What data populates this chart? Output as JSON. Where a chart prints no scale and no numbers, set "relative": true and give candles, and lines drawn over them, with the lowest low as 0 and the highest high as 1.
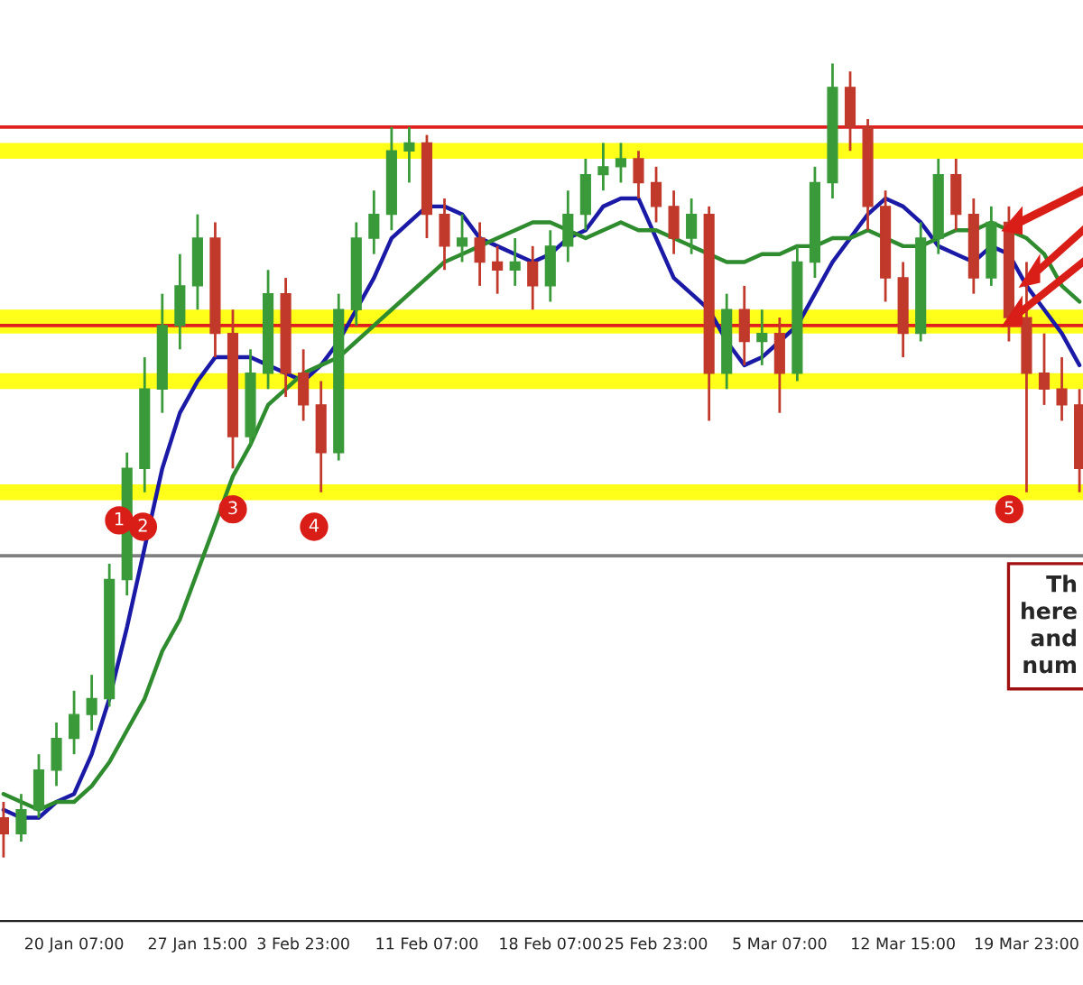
{
  "chart_data": {
    "type": "candlestick",
    "relative": true,
    "tick_labels": "x",
    "grid": false,
    "categories": [
      null,
      null,
      null,
      null,
      "20 Jan 07:00",
      null,
      null,
      null,
      null,
      null,
      null,
      "27 Jan 15:00",
      null,
      null,
      null,
      null,
      null,
      "3 Feb 23:00",
      null,
      null,
      null,
      null,
      null,
      null,
      "11 Feb 07:00",
      null,
      null,
      null,
      null,
      null,
      null,
      "18 Feb 07:00",
      null,
      null,
      null,
      null,
      null,
      "25 Feb 23:00",
      null,
      null,
      null,
      null,
      null,
      null,
      "5 Mar 07:00",
      null,
      null,
      null,
      null,
      null,
      null,
      "12 Mar 15:00",
      null,
      null,
      null,
      null,
      null,
      null,
      "19 Mar 23:00",
      null,
      null,
      null
    ],
    "ohlc": [
      [
        0.05,
        0.07,
        0.0,
        0.03
      ],
      [
        0.03,
        0.08,
        0.02,
        0.06
      ],
      [
        0.06,
        0.13,
        0.05,
        0.11
      ],
      [
        0.11,
        0.17,
        0.09,
        0.15
      ],
      [
        0.15,
        0.21,
        0.13,
        0.18
      ],
      [
        0.18,
        0.23,
        0.16,
        0.2
      ],
      [
        0.2,
        0.37,
        0.19,
        0.35
      ],
      [
        0.35,
        0.51,
        0.33,
        0.49
      ],
      [
        0.49,
        0.63,
        0.46,
        0.59
      ],
      [
        0.59,
        0.71,
        0.56,
        0.67
      ],
      [
        0.67,
        0.76,
        0.64,
        0.72
      ],
      [
        0.72,
        0.81,
        0.69,
        0.78
      ],
      [
        0.78,
        0.8,
        0.63,
        0.66
      ],
      [
        0.66,
        0.69,
        0.49,
        0.53
      ],
      [
        0.53,
        0.64,
        0.52,
        0.61
      ],
      [
        0.61,
        0.74,
        0.59,
        0.71
      ],
      [
        0.71,
        0.73,
        0.58,
        0.61
      ],
      [
        0.61,
        0.64,
        0.55,
        0.57
      ],
      [
        0.57,
        0.6,
        0.46,
        0.51
      ],
      [
        0.51,
        0.71,
        0.5,
        0.69
      ],
      [
        0.69,
        0.8,
        0.67,
        0.78
      ],
      [
        0.78,
        0.84,
        0.76,
        0.81
      ],
      [
        0.81,
        0.92,
        0.79,
        0.89
      ],
      [
        0.89,
        0.92,
        0.85,
        0.9
      ],
      [
        0.9,
        0.91,
        0.78,
        0.81
      ],
      [
        0.81,
        0.83,
        0.74,
        0.77
      ],
      [
        0.77,
        0.81,
        0.75,
        0.78
      ],
      [
        0.78,
        0.8,
        0.72,
        0.75
      ],
      [
        0.75,
        0.77,
        0.71,
        0.74
      ],
      [
        0.74,
        0.78,
        0.72,
        0.75
      ],
      [
        0.75,
        0.77,
        0.69,
        0.72
      ],
      [
        0.72,
        0.79,
        0.7,
        0.77
      ],
      [
        0.77,
        0.84,
        0.75,
        0.81
      ],
      [
        0.81,
        0.88,
        0.79,
        0.86
      ],
      [
        0.86,
        0.9,
        0.84,
        0.87
      ],
      [
        0.87,
        0.9,
        0.85,
        0.88
      ],
      [
        0.88,
        0.89,
        0.83,
        0.85
      ],
      [
        0.85,
        0.87,
        0.8,
        0.82
      ],
      [
        0.82,
        0.84,
        0.76,
        0.78
      ],
      [
        0.78,
        0.83,
        0.76,
        0.81
      ],
      [
        0.81,
        0.82,
        0.55,
        0.61
      ],
      [
        0.61,
        0.71,
        0.59,
        0.69
      ],
      [
        0.69,
        0.72,
        0.62,
        0.65
      ],
      [
        0.65,
        0.69,
        0.62,
        0.66
      ],
      [
        0.66,
        0.68,
        0.56,
        0.61
      ],
      [
        0.61,
        0.77,
        0.6,
        0.75
      ],
      [
        0.75,
        0.87,
        0.73,
        0.85
      ],
      [
        0.85,
        1.0,
        0.83,
        0.97
      ],
      [
        0.97,
        0.99,
        0.89,
        0.92
      ],
      [
        0.92,
        0.93,
        0.79,
        0.82
      ],
      [
        0.82,
        0.84,
        0.7,
        0.73
      ],
      [
        0.73,
        0.75,
        0.63,
        0.66
      ],
      [
        0.66,
        0.8,
        0.65,
        0.78
      ],
      [
        0.78,
        0.88,
        0.76,
        0.86
      ],
      [
        0.86,
        0.88,
        0.79,
        0.81
      ],
      [
        0.81,
        0.83,
        0.71,
        0.73
      ],
      [
        0.73,
        0.82,
        0.72,
        0.8
      ],
      [
        0.8,
        0.82,
        0.65,
        0.68
      ],
      [
        0.68,
        0.75,
        0.46,
        0.61
      ],
      [
        0.61,
        0.66,
        0.57,
        0.59
      ],
      [
        0.59,
        0.63,
        0.55,
        0.57
      ],
      [
        0.57,
        0.59,
        0.46,
        0.49
      ]
    ],
    "series": [
      {
        "type": "line",
        "color": "#1a1aa6",
        "values": [
          0.06,
          0.05,
          0.05,
          0.07,
          0.08,
          0.13,
          0.2,
          0.29,
          0.39,
          0.49,
          0.56,
          0.6,
          0.63,
          0.63,
          0.63,
          0.62,
          0.61,
          0.6,
          0.62,
          0.65,
          0.69,
          0.73,
          0.78,
          0.8,
          0.82,
          0.82,
          0.81,
          0.78,
          0.77,
          0.76,
          0.75,
          0.76,
          0.78,
          0.79,
          0.82,
          0.83,
          0.83,
          0.78,
          0.73,
          0.71,
          0.69,
          0.65,
          0.62,
          0.63,
          0.65,
          0.67,
          0.71,
          0.75,
          0.78,
          0.81,
          0.83,
          0.82,
          0.8,
          0.77,
          0.76,
          0.75,
          0.77,
          0.76,
          0.72,
          0.69,
          0.66,
          0.62
        ]
      },
      {
        "type": "line",
        "color": "#2e8b2e",
        "values": [
          0.08,
          0.07,
          0.06,
          0.07,
          0.07,
          0.09,
          0.12,
          0.16,
          0.2,
          0.26,
          0.3,
          0.36,
          0.42,
          0.48,
          0.52,
          0.57,
          0.59,
          0.61,
          0.62,
          0.63,
          0.65,
          0.67,
          0.69,
          0.71,
          0.73,
          0.75,
          0.76,
          0.77,
          0.78,
          0.79,
          0.8,
          0.8,
          0.79,
          0.78,
          0.79,
          0.8,
          0.79,
          0.79,
          0.78,
          0.77,
          0.76,
          0.75,
          0.75,
          0.76,
          0.76,
          0.77,
          0.77,
          0.78,
          0.78,
          0.79,
          0.78,
          0.77,
          0.77,
          0.78,
          0.79,
          0.79,
          0.8,
          0.79,
          0.78,
          0.76,
          0.72,
          0.7
        ]
      }
    ],
    "ref_lines": [
      {
        "axis": "y",
        "value": 0.92,
        "color": "#e02020"
      },
      {
        "axis": "y",
        "value": 0.67,
        "color": "#e02020"
      },
      {
        "axis": "y",
        "value": 0.38,
        "color": "#808080"
      }
    ],
    "bands": [
      {
        "axis": "y",
        "from": 0.88,
        "to": 0.9,
        "color": "#ffff00"
      },
      {
        "axis": "y",
        "from": 0.66,
        "to": 0.69,
        "color": "#ffff00"
      },
      {
        "axis": "y",
        "from": 0.59,
        "to": 0.61,
        "color": "#ffff00"
      },
      {
        "axis": "y",
        "from": 0.45,
        "to": 0.47,
        "color": "#ffff00"
      }
    ],
    "annotations": [
      "1",
      "2",
      "3",
      "4",
      "5",
      "Th\nhere\nand\nnum"
    ]
  }
}
